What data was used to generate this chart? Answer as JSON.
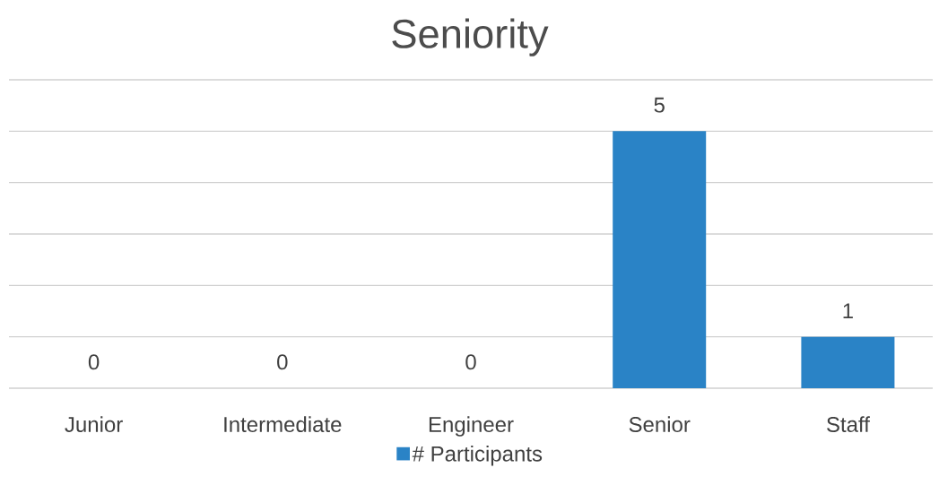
{
  "chart_data": {
    "type": "bar",
    "title": "Seniority",
    "categories": [
      "Junior",
      "Intermediate",
      "Engineer",
      "Senior",
      "Staff"
    ],
    "series": [
      {
        "name": "# Participants",
        "color": "#2a83c6",
        "values": [
          0,
          0,
          0,
          5,
          1
        ]
      }
    ],
    "ylim": [
      0,
      6
    ],
    "yticks": [
      {
        "value": 0,
        "label": null
      },
      {
        "value": 1,
        "label": null
      },
      {
        "value": 2,
        "label": null
      },
      {
        "value": 3,
        "label": null
      },
      {
        "value": 4,
        "label": null
      },
      {
        "value": 5,
        "label": null
      },
      {
        "value": 6,
        "label": null
      }
    ],
    "tick_labels": "x",
    "grid": "y",
    "legend": "bottom",
    "data_labels": true
  }
}
